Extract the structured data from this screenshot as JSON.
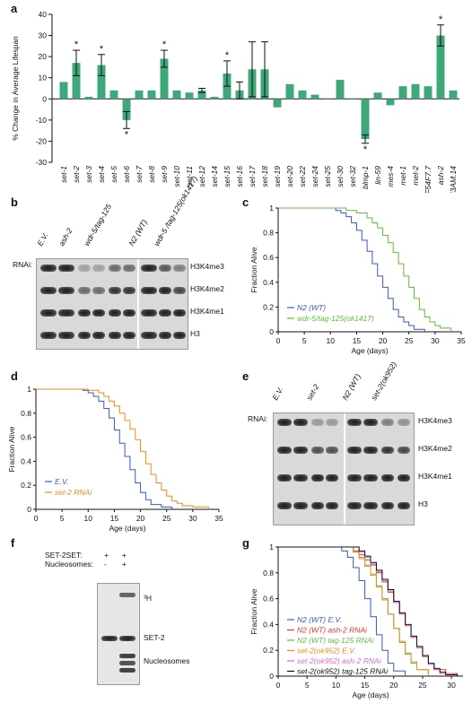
{
  "panels": {
    "a": {
      "letter": "a",
      "chart_data": {
        "type": "bar",
        "ylabel": "% Change in Average Lifespan",
        "ylim": [
          -30,
          40
        ],
        "yticks": [
          -30,
          -20,
          -10,
          0,
          10,
          20,
          30,
          40
        ],
        "categories": [
          "set-1",
          "set-2",
          "set-3",
          "set-4",
          "set-5",
          "set-6",
          "set-7",
          "set-8",
          "set-9",
          "set-10",
          "set-11",
          "set-12",
          "set-14",
          "set-15",
          "set-16",
          "set-17",
          "set-18",
          "set-19",
          "set-20",
          "set-22",
          "set-24",
          "set-25",
          "set-30",
          "set-32",
          "blmp-1",
          "lin-59",
          "mes-4",
          "met-1",
          "met-2",
          "F54F7.7",
          "ash-2",
          "Y55F3AM.14"
        ],
        "values": [
          8,
          17,
          1,
          16,
          4,
          -10,
          4,
          4,
          19,
          4,
          3,
          4,
          1,
          12,
          4,
          14,
          14,
          -4,
          7,
          4,
          2,
          0,
          9,
          0,
          -19,
          3,
          -3,
          6,
          7,
          6,
          30,
          4
        ],
        "errors": [
          0,
          6,
          0,
          5,
          0,
          4,
          0,
          0,
          4,
          0,
          0,
          1,
          0,
          6,
          4,
          13,
          13,
          0,
          0,
          0,
          0,
          0,
          0,
          0,
          2,
          0,
          0,
          0,
          0,
          0,
          5,
          0
        ],
        "significant": [
          "set-2",
          "set-4",
          "set-6",
          "set-9",
          "set-15",
          "blmp-1",
          "ash-2"
        ],
        "significance_marker": "*",
        "bar_color": "#3fa87a"
      }
    },
    "b": {
      "letter": "b",
      "rnai_label": "RNAi:",
      "lanes": [
        "E.V.",
        "ash-2",
        "wdr-5/tag-125",
        "N2 (WT)",
        "wdr-5 /tag-125(ok1417)"
      ],
      "rows": [
        "H3K4me3",
        "H3K4me2",
        "H3K4me1",
        "H3"
      ]
    },
    "c": {
      "letter": "c",
      "chart_data": {
        "type": "line",
        "xlabel": "Age (days)",
        "ylabel": "Fraction Alive",
        "xlim": [
          0,
          35
        ],
        "ylim": [
          0,
          1
        ],
        "xticks": [
          0,
          5,
          10,
          15,
          20,
          25,
          30,
          35
        ],
        "yticks": [
          0,
          0.2,
          0.4,
          0.6,
          0.8,
          1
        ],
        "series": [
          {
            "name": "N2 (WT)",
            "color": "#3a57c4",
            "x": [
              0,
              9,
              11,
              12,
              13,
              14,
              15,
              16,
              17,
              18,
              19,
              20,
              21,
              22,
              23,
              24,
              25,
              26,
              28
            ],
            "y": [
              1,
              1,
              0.98,
              0.96,
              0.93,
              0.88,
              0.82,
              0.74,
              0.65,
              0.55,
              0.45,
              0.36,
              0.27,
              0.18,
              0.12,
              0.08,
              0.05,
              0.02,
              0
            ]
          },
          {
            "name": "wdr-5/tag-125(ok1417)",
            "color": "#5cbf3c",
            "x": [
              0,
              11,
              13,
              15,
              17,
              18,
              19,
              20,
              21,
              22,
              23,
              24,
              25,
              26,
              27,
              28,
              29,
              30,
              31,
              33
            ],
            "y": [
              1,
              1,
              0.98,
              0.96,
              0.92,
              0.88,
              0.84,
              0.78,
              0.72,
              0.64,
              0.55,
              0.45,
              0.36,
              0.27,
              0.18,
              0.12,
              0.08,
              0.05,
              0.03,
              0
            ]
          }
        ]
      }
    },
    "d": {
      "letter": "d",
      "chart_data": {
        "type": "line",
        "xlabel": "Age (days)",
        "ylabel": "Fraction Alive",
        "xlim": [
          0,
          35
        ],
        "ylim": [
          0,
          1
        ],
        "xticks": [
          0,
          5,
          10,
          15,
          20,
          25,
          30,
          35
        ],
        "yticks": [
          0,
          0.2,
          0.4,
          0.6,
          0.8,
          1
        ],
        "series": [
          {
            "name": "E.V.",
            "color": "#3a57c4",
            "x": [
              0,
              7,
              9,
              10,
              11,
              12,
              13,
              14,
              15,
              16,
              17,
              18,
              19,
              20,
              21,
              22,
              24,
              26
            ],
            "y": [
              1,
              1,
              0.99,
              0.97,
              0.94,
              0.9,
              0.84,
              0.76,
              0.66,
              0.55,
              0.44,
              0.33,
              0.22,
              0.14,
              0.08,
              0.04,
              0.02,
              0
            ]
          },
          {
            "name": "set-2 RNAi",
            "color": "#f08a1c",
            "x": [
              0,
              8,
              10,
              12,
              13,
              14,
              15,
              16,
              17,
              18,
              19,
              20,
              21,
              22,
              23,
              24,
              25,
              26,
              27,
              28,
              30,
              33
            ],
            "y": [
              1,
              1,
              0.99,
              0.97,
              0.94,
              0.9,
              0.86,
              0.8,
              0.74,
              0.67,
              0.58,
              0.48,
              0.38,
              0.29,
              0.22,
              0.16,
              0.11,
              0.07,
              0.05,
              0.03,
              0.02,
              0
            ]
          }
        ]
      }
    },
    "e": {
      "letter": "e",
      "rnai_label": "RNAi:",
      "lanes": [
        "E.V.",
        "set-2",
        "N2 (WT)",
        "set-2(ok952)"
      ],
      "rows": [
        "H3K4me3",
        "H3K4me2",
        "H3K4me1",
        "H3"
      ]
    },
    "f": {
      "letter": "f",
      "row_labels": [
        "SET-2SET:",
        "Nucleosomes:"
      ],
      "marks": [
        [
          "+",
          "+"
        ],
        [
          "-",
          "+"
        ]
      ],
      "rows": [
        "³H",
        "SET-2",
        "Nucleosomes"
      ]
    },
    "g": {
      "letter": "g",
      "chart_data": {
        "type": "line",
        "xlabel": "Age (days)",
        "ylabel": "Fraction Alive",
        "xlim": [
          0,
          32
        ],
        "ylim": [
          0,
          1
        ],
        "xticks": [
          0,
          5,
          10,
          15,
          20,
          25,
          30
        ],
        "yticks": [
          0,
          0.2,
          0.4,
          0.6,
          0.8,
          1
        ],
        "series": [
          {
            "name": "N2 (WT) E.V.",
            "color": "#3a57c4",
            "x": [
              0,
              10,
              11,
              12,
              13,
              14,
              15,
              16,
              17,
              18,
              19,
              20,
              22
            ],
            "y": [
              1,
              1,
              0.97,
              0.92,
              0.84,
              0.74,
              0.6,
              0.46,
              0.32,
              0.2,
              0.1,
              0.04,
              0
            ]
          },
          {
            "name": "N2 (WT) ash-2 RNAi",
            "color": "#e8312f",
            "x": [
              0,
              11,
              13,
              14,
              15,
              16,
              17,
              18,
              19,
              20,
              21,
              22,
              23,
              24,
              25,
              26,
              27,
              29,
              31
            ],
            "y": [
              1,
              1,
              0.97,
              0.94,
              0.9,
              0.86,
              0.8,
              0.73,
              0.65,
              0.57,
              0.48,
              0.39,
              0.3,
              0.22,
              0.15,
              0.09,
              0.05,
              0.02,
              0
            ]
          },
          {
            "name": "N2 (WT) tag-125 RNAi",
            "color": "#5cbf3c",
            "x": [
              0,
              11,
              13,
              14,
              15,
              16,
              17,
              18,
              19,
              20,
              21,
              22,
              23,
              24,
              26
            ],
            "y": [
              1,
              1,
              0.96,
              0.92,
              0.86,
              0.79,
              0.7,
              0.6,
              0.48,
              0.37,
              0.26,
              0.17,
              0.1,
              0.05,
              0
            ]
          },
          {
            "name": "set-2(ok952) E.V.",
            "color": "#f08a1c",
            "x": [
              0,
              11,
              13,
              14,
              15,
              16,
              17,
              18,
              19,
              20,
              21,
              22,
              23,
              24,
              26
            ],
            "y": [
              1,
              1,
              0.96,
              0.91,
              0.85,
              0.78,
              0.69,
              0.59,
              0.48,
              0.37,
              0.27,
              0.18,
              0.11,
              0.05,
              0
            ]
          },
          {
            "name": "set-2(ok952) ash-2 RNAi",
            "color": "#d66bd6",
            "x": [
              0,
              12,
              14,
              15,
              16,
              17,
              18,
              19,
              20,
              21,
              22,
              23,
              24,
              25,
              26,
              27,
              28,
              30
            ],
            "y": [
              1,
              1,
              0.96,
              0.92,
              0.87,
              0.81,
              0.74,
              0.66,
              0.57,
              0.48,
              0.39,
              0.3,
              0.22,
              0.15,
              0.09,
              0.05,
              0.02,
              0
            ]
          },
          {
            "name": "set-2(ok952) tag-125 RNAi",
            "color": "#111111",
            "x": [
              0,
              12,
              14,
              15,
              16,
              17,
              18,
              19,
              20,
              21,
              22,
              23,
              24,
              25,
              26,
              27,
              28,
              29,
              31
            ],
            "y": [
              1,
              1,
              0.97,
              0.93,
              0.88,
              0.82,
              0.75,
              0.67,
              0.58,
              0.49,
              0.4,
              0.31,
              0.23,
              0.16,
              0.1,
              0.06,
              0.03,
              0.01,
              0
            ]
          }
        ]
      }
    }
  }
}
